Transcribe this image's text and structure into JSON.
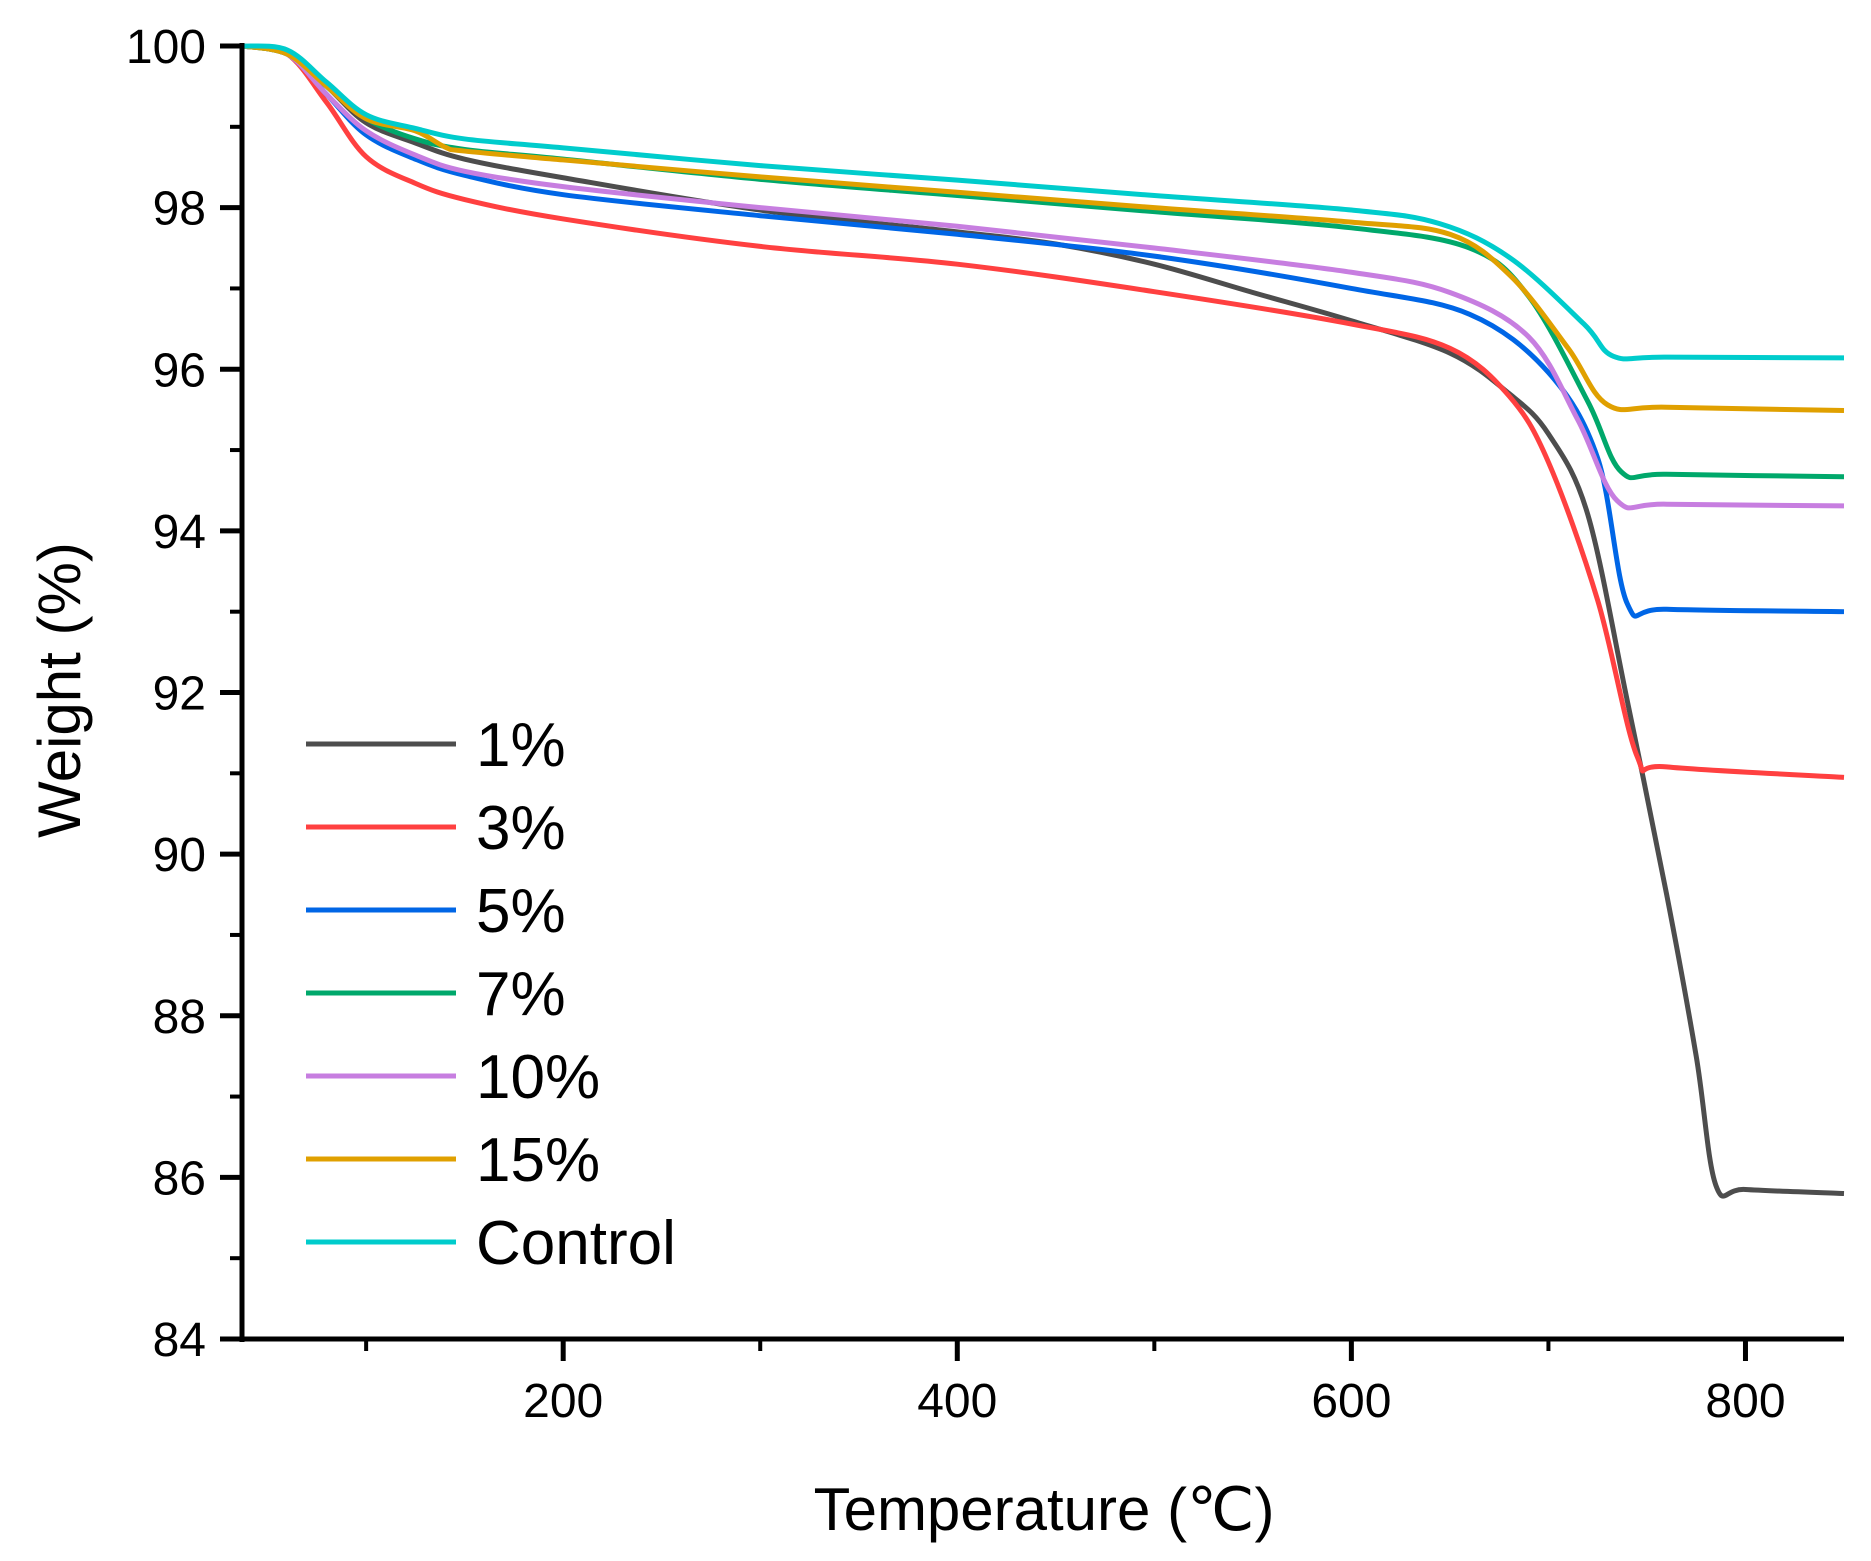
{
  "chart_data": {
    "type": "line",
    "title": "",
    "xlabel": "Temperature (℃)",
    "ylabel": "Weight (%)",
    "xlim": [
      37,
      850
    ],
    "ylim": [
      84,
      100
    ],
    "xticks": [
      200,
      400,
      600,
      800
    ],
    "xminor": [
      100,
      300,
      500,
      700
    ],
    "yticks": [
      84,
      86,
      88,
      90,
      92,
      94,
      96,
      98,
      100
    ],
    "yminor": [
      85,
      87,
      89,
      91,
      93,
      95,
      97,
      99
    ],
    "grid": false,
    "legend_position": "bottom-left",
    "series": [
      {
        "name": "1%",
        "color": "#4d4d4d",
        "x": [
          37,
          60,
          80,
          100,
          125,
          150,
          200,
          300,
          400,
          450,
          500,
          550,
          600,
          650,
          680,
          700,
          720,
          740,
          760,
          775,
          785,
          800,
          850
        ],
        "y": [
          100,
          99.9,
          99.5,
          99.05,
          98.8,
          98.6,
          98.37,
          97.97,
          97.7,
          97.55,
          97.3,
          96.95,
          96.6,
          96.2,
          95.7,
          95.2,
          94.2,
          91.9,
          89.5,
          87.5,
          85.9,
          85.85,
          85.8
        ]
      },
      {
        "name": "3%",
        "color": "#ff4040",
        "x": [
          37,
          60,
          80,
          100,
          125,
          150,
          200,
          300,
          400,
          500,
          600,
          650,
          680,
          700,
          725,
          745,
          760,
          850
        ],
        "y": [
          100,
          99.9,
          99.3,
          98.63,
          98.3,
          98.1,
          97.86,
          97.52,
          97.3,
          96.96,
          96.56,
          96.26,
          95.67,
          94.85,
          93.14,
          91.21,
          91.08,
          90.95
        ]
      },
      {
        "name": "5%",
        "color": "#0066e6",
        "x": [
          37,
          60,
          80,
          100,
          125,
          150,
          200,
          300,
          400,
          500,
          600,
          660,
          700,
          725,
          740,
          760,
          850
        ],
        "y": [
          100,
          99.9,
          99.4,
          98.9,
          98.6,
          98.4,
          98.16,
          97.9,
          97.67,
          97.4,
          97.0,
          96.68,
          95.96,
          94.9,
          93.1,
          93.03,
          93.0
        ]
      },
      {
        "name": "7%",
        "color": "#00a86b",
        "x": [
          37,
          60,
          80,
          100,
          125,
          150,
          200,
          300,
          400,
          500,
          600,
          660,
          690,
          720,
          737,
          760,
          850
        ],
        "y": [
          100,
          99.9,
          99.5,
          99.1,
          98.85,
          98.72,
          98.6,
          98.35,
          98.15,
          97.95,
          97.75,
          97.5,
          96.9,
          95.6,
          94.73,
          94.7,
          94.67
        ]
      },
      {
        "name": "10%",
        "color": "#c77ee0",
        "x": [
          37,
          60,
          80,
          100,
          125,
          150,
          200,
          300,
          400,
          500,
          600,
          650,
          690,
          715,
          735,
          760,
          850
        ],
        "y": [
          100,
          99.9,
          99.4,
          98.95,
          98.65,
          98.45,
          98.26,
          98.0,
          97.77,
          97.5,
          97.2,
          96.95,
          96.4,
          95.37,
          94.37,
          94.33,
          94.31
        ]
      },
      {
        "name": "15%",
        "color": "#e0a000",
        "x": [
          37,
          60,
          80,
          100,
          125,
          140,
          150,
          200,
          300,
          400,
          500,
          600,
          650,
          681,
          710,
          730,
          760,
          850
        ],
        "y": [
          100,
          99.9,
          99.5,
          99.1,
          98.95,
          98.75,
          98.7,
          98.59,
          98.38,
          98.19,
          98.0,
          97.82,
          97.67,
          97.15,
          96.26,
          95.56,
          95.53,
          95.49
        ]
      },
      {
        "name": "Control",
        "color": "#00cccc",
        "x": [
          37,
          60,
          80,
          100,
          125,
          150,
          200,
          300,
          400,
          500,
          600,
          645,
          681,
          718,
          733,
          760,
          850
        ],
        "y": [
          100,
          99.95,
          99.55,
          99.15,
          98.98,
          98.85,
          98.74,
          98.52,
          98.34,
          98.15,
          97.97,
          97.8,
          97.37,
          96.56,
          96.16,
          96.15,
          96.14
        ]
      }
    ]
  }
}
